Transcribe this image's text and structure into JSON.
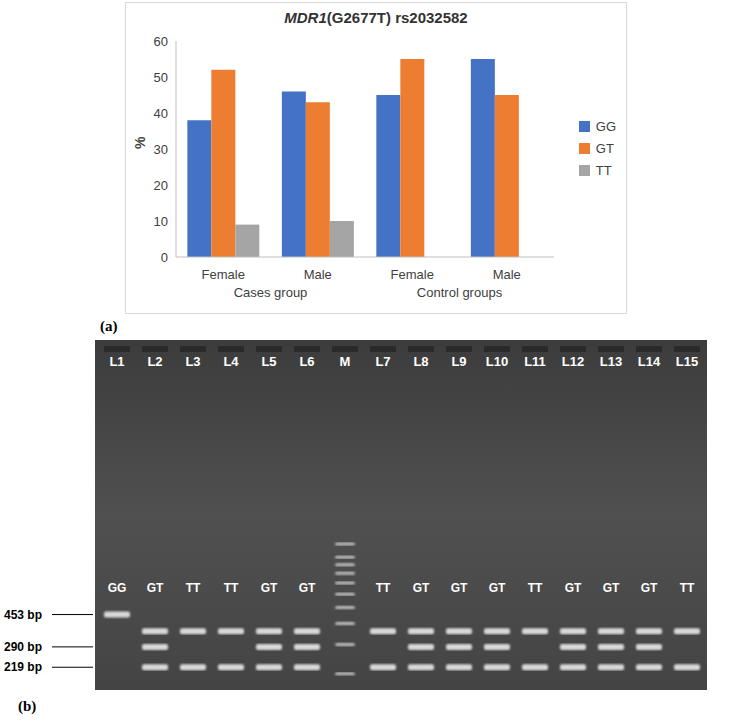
{
  "chart_data": {
    "type": "bar",
    "title": "MDR1(G2677T) rs2032582",
    "categories": [
      "Female",
      "Male",
      "Female",
      "Male"
    ],
    "category_groups": [
      "Cases group",
      "Cases group",
      "Control groups",
      "Control groups"
    ],
    "y_label": "%",
    "series": [
      {
        "name": "GG",
        "color": "#4472c4",
        "values": [
          38,
          46,
          45,
          55
        ]
      },
      {
        "name": "GT",
        "color": "#ed7d31",
        "values": [
          52,
          43,
          55,
          45
        ]
      },
      {
        "name": "TT",
        "color": "#a5a5a5",
        "values": [
          9,
          10,
          0,
          0
        ]
      }
    ],
    "ylim": [
      0,
      60
    ],
    "yticks": [
      0,
      10,
      20,
      30,
      40,
      50,
      60
    ],
    "grid": false,
    "legend": "right"
  },
  "panel_labels": [
    "(a)",
    "(b)"
  ],
  "gel": {
    "ylim": [
      160,
      20000
    ],
    "log": true,
    "size_markers": [
      {
        "value": 453,
        "label": "453 bp"
      },
      {
        "value": 290,
        "label": "290 bp"
      },
      {
        "value": 219,
        "label": "219 bp"
      }
    ],
    "lanes": [
      {
        "label": "L1",
        "genotype": "GG",
        "bands": [
          453
        ]
      },
      {
        "label": "L2",
        "genotype": "GT",
        "bands": [
          360,
          290,
          219
        ]
      },
      {
        "label": "L3",
        "genotype": "TT",
        "bands": [
          360,
          219
        ]
      },
      {
        "label": "L4",
        "genotype": "TT",
        "bands": [
          360,
          219
        ]
      },
      {
        "label": "L5",
        "genotype": "GT",
        "bands": [
          360,
          290,
          219
        ]
      },
      {
        "label": "L6",
        "genotype": "GT",
        "bands": [
          360,
          290,
          219
        ]
      },
      {
        "label": "M",
        "bands": [
          1200,
          1000,
          900,
          800,
          700,
          600,
          500,
          400,
          300,
          200
        ]
      },
      {
        "label": "L7",
        "genotype": "TT",
        "bands": [
          360,
          219
        ]
      },
      {
        "label": "L8",
        "genotype": "GT",
        "bands": [
          360,
          290,
          219
        ]
      },
      {
        "label": "L9",
        "genotype": "GT",
        "bands": [
          360,
          290,
          219
        ]
      },
      {
        "label": "L10",
        "genotype": "GT",
        "bands": [
          360,
          290,
          219
        ]
      },
      {
        "label": "L11",
        "genotype": "TT",
        "bands": [
          360,
          219
        ]
      },
      {
        "label": "L12",
        "genotype": "GT",
        "bands": [
          360,
          290,
          219
        ]
      },
      {
        "label": "L13",
        "genotype": "GT",
        "bands": [
          360,
          290,
          219
        ]
      },
      {
        "label": "L14",
        "genotype": "GT",
        "bands": [
          360,
          290,
          219
        ]
      },
      {
        "label": "L15",
        "genotype": "TT",
        "bands": [
          360,
          219
        ]
      }
    ]
  }
}
